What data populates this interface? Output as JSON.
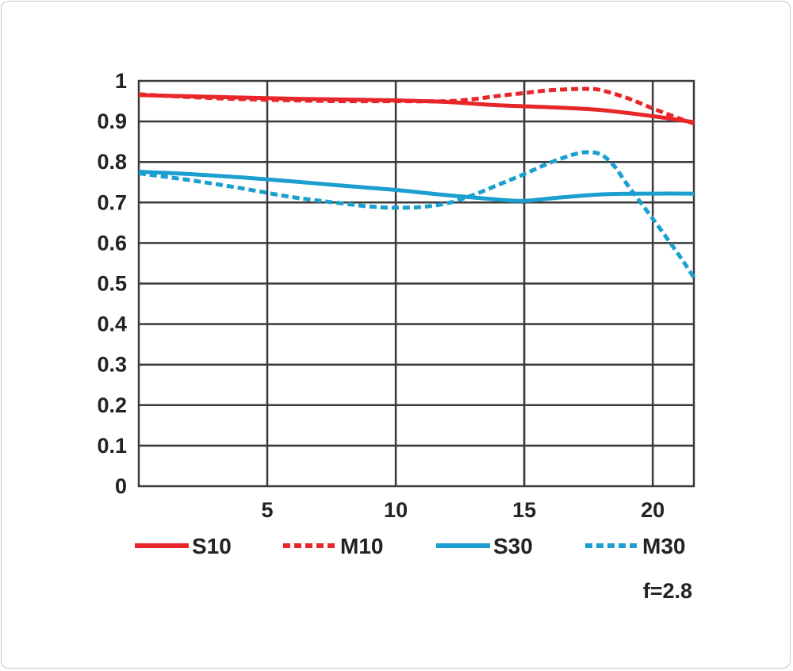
{
  "chart_data": {
    "type": "line",
    "title": "",
    "xlabel": "",
    "ylabel": "",
    "xlim": [
      0,
      21.6
    ],
    "ylim": [
      0,
      1
    ],
    "x_ticks": [
      "5",
      "10",
      "15",
      "20"
    ],
    "y_ticks": [
      "0",
      "0.1",
      "0.2",
      "0.3",
      "0.4",
      "0.5",
      "0.6",
      "0.7",
      "0.8",
      "0.9",
      "1"
    ],
    "grid": true,
    "legend_position": "bottom",
    "annotation": "f=2.8",
    "series": [
      {
        "name": "S10",
        "color": "#e8262a",
        "style": "solid",
        "x": [
          0,
          2,
          4,
          6,
          8,
          10,
          12,
          14,
          16,
          18,
          20,
          21.6
        ],
        "y": [
          0.965,
          0.962,
          0.959,
          0.956,
          0.954,
          0.952,
          0.948,
          0.94,
          0.935,
          0.928,
          0.913,
          0.898
        ]
      },
      {
        "name": "M10",
        "color": "#e8262a",
        "style": "dashed",
        "x": [
          0,
          2,
          4,
          6,
          8,
          10,
          12,
          13,
          14,
          15,
          16,
          17,
          17.6,
          18,
          19,
          20,
          21,
          21.6
        ],
        "y": [
          0.967,
          0.96,
          0.955,
          0.952,
          0.95,
          0.95,
          0.95,
          0.955,
          0.963,
          0.97,
          0.977,
          0.98,
          0.98,
          0.977,
          0.958,
          0.932,
          0.908,
          0.895
        ]
      },
      {
        "name": "S30",
        "color": "#1a9fcf",
        "style": "solid",
        "x": [
          0,
          2,
          4,
          6,
          8,
          10,
          12,
          14,
          15,
          16,
          18,
          20,
          21.6
        ],
        "y": [
          0.776,
          0.77,
          0.762,
          0.752,
          0.741,
          0.731,
          0.718,
          0.707,
          0.704,
          0.71,
          0.72,
          0.722,
          0.722
        ]
      },
      {
        "name": "M30",
        "color": "#1a9fcf",
        "style": "dashed",
        "x": [
          0,
          2,
          4,
          6,
          8,
          9,
          10,
          11,
          12,
          13,
          14,
          15,
          16,
          17,
          17.5,
          18,
          18.5,
          19,
          20,
          21,
          21.6
        ],
        "y": [
          0.772,
          0.755,
          0.735,
          0.713,
          0.697,
          0.69,
          0.687,
          0.689,
          0.698,
          0.718,
          0.744,
          0.77,
          0.798,
          0.82,
          0.824,
          0.818,
          0.79,
          0.745,
          0.66,
          0.572,
          0.515
        ]
      }
    ]
  }
}
